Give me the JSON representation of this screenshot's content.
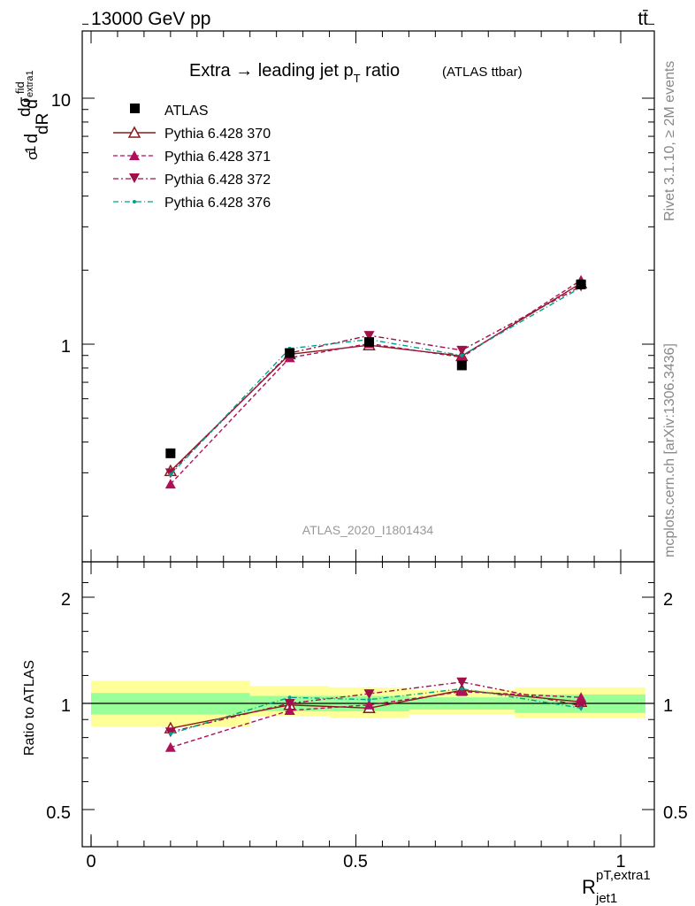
{
  "header": {
    "energy": "13000 GeV pp",
    "process": "tt̄",
    "title_main": "Extra → leading jet p",
    "title_sub": "T",
    "title_rest": " ratio",
    "title_small": "(ATLAS ttbar)",
    "analysis_id": "ATLAS_2020_I1801434",
    "side_rivet": "Rivet 3.1.10, ≥ 2M events",
    "side_mcplots": "mcplots.cern.ch [arXiv:1306.3436]"
  },
  "axes": {
    "y_main_label": "(1/σ) dσ^fid_extra1 / dR^pT,extra1_jet1",
    "y_main_ticks": [
      "1",
      "10"
    ],
    "y_ratio_label": "Ratio to ATLAS",
    "y_ratio_ticks": [
      "0.5",
      "1",
      "2"
    ],
    "x_ticks": [
      "0",
      "0.5",
      "1"
    ],
    "x_label_main": "R",
    "x_label_sup": "pT,extra1",
    "x_label_sub": "jet1"
  },
  "colors": {
    "data": "#000000",
    "p370": "#8b1a1a",
    "p371": "#b0105a",
    "p372": "#a01048",
    "p376": "#00a08a",
    "band_inner": "#99ff99",
    "band_outer": "#ffff99"
  },
  "chart_data": [
    {
      "type": "line",
      "log_y": true,
      "xlim": [
        -0.05,
        1.05
      ],
      "ylim": [
        0.2,
        20
      ],
      "legend_position": "top-left",
      "x": [
        0.15,
        0.375,
        0.525,
        0.7,
        0.925
      ],
      "x_bins": [
        [
          0.0,
          0.3
        ],
        [
          0.3,
          0.45
        ],
        [
          0.45,
          0.6
        ],
        [
          0.6,
          0.8
        ],
        [
          0.8,
          1.05
        ]
      ],
      "series": [
        {
          "name": "ATLAS",
          "values": [
            0.36,
            0.92,
            1.02,
            0.82,
            1.75
          ]
        },
        {
          "name": "Pythia 6.428 370",
          "values": [
            0.305,
            0.91,
            0.99,
            0.895,
            1.77
          ]
        },
        {
          "name": "Pythia 6.428 371",
          "values": [
            0.27,
            0.88,
            1.005,
            0.885,
            1.82
          ]
        },
        {
          "name": "Pythia 6.428 372",
          "values": [
            0.3,
            0.92,
            1.085,
            0.945,
            1.72
          ]
        },
        {
          "name": "Pythia 6.428 376",
          "values": [
            0.295,
            0.96,
            1.045,
            0.9,
            1.7
          ]
        }
      ]
    },
    {
      "type": "line",
      "log_y": true,
      "xlim": [
        -0.05,
        1.05
      ],
      "ylim": [
        0.4,
        2.4
      ],
      "x": [
        0.15,
        0.375,
        0.525,
        0.7,
        0.925
      ],
      "band_bins": [
        [
          0.0,
          0.3
        ],
        [
          0.3,
          0.45
        ],
        [
          0.45,
          0.6
        ],
        [
          0.6,
          0.8
        ],
        [
          0.8,
          1.05
        ]
      ],
      "band_inner": [
        [
          0.93,
          1.07
        ],
        [
          0.95,
          1.05
        ],
        [
          0.95,
          1.05
        ],
        [
          0.96,
          1.04
        ],
        [
          0.94,
          1.06
        ]
      ],
      "band_outer": [
        [
          0.86,
          1.16
        ],
        [
          0.92,
          1.12
        ],
        [
          0.91,
          1.11
        ],
        [
          0.93,
          1.09
        ],
        [
          0.91,
          1.11
        ]
      ],
      "series": [
        {
          "name": "Pythia 6.428 370",
          "values": [
            0.85,
            0.99,
            0.97,
            1.09,
            1.01
          ]
        },
        {
          "name": "Pythia 6.428 371",
          "values": [
            0.75,
            0.955,
            0.99,
            1.08,
            1.04
          ]
        },
        {
          "name": "Pythia 6.428 372",
          "values": [
            0.83,
            1.0,
            1.065,
            1.15,
            0.985
          ]
        },
        {
          "name": "Pythia 6.428 376",
          "values": [
            0.82,
            1.04,
            1.025,
            1.1,
            0.97
          ]
        }
      ]
    }
  ]
}
